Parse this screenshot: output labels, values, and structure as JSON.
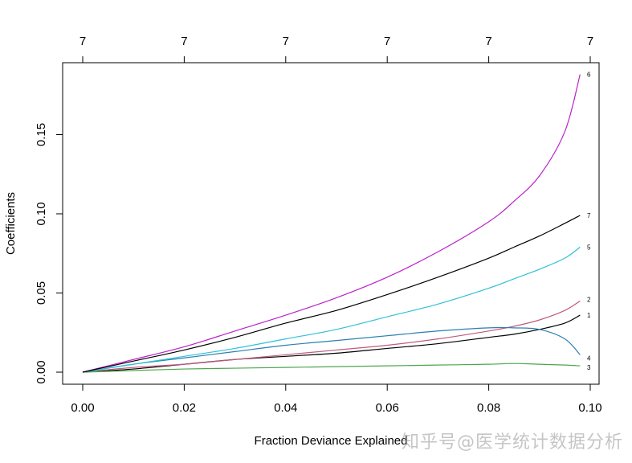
{
  "chart_data": {
    "type": "line",
    "title": "",
    "xlabel": "Fraction Deviance Explained",
    "ylabel": "Coefficients",
    "xlim": [
      -0.004,
      0.102
    ],
    "ylim": [
      -0.008,
      0.195
    ],
    "x_ticks": [
      0.0,
      0.02,
      0.04,
      0.06,
      0.08,
      0.1
    ],
    "x_tick_labels": [
      "0.00",
      "0.02",
      "0.04",
      "0.06",
      "0.08",
      "0.10"
    ],
    "y_ticks": [
      0.0,
      0.05,
      0.1,
      0.15
    ],
    "y_tick_labels": [
      "0.00",
      "0.05",
      "0.10",
      "0.15"
    ],
    "top_axis_ticks": [
      0.0,
      0.02,
      0.04,
      0.06,
      0.08,
      0.1
    ],
    "top_axis_labels": [
      "7",
      "7",
      "7",
      "7",
      "7",
      "7"
    ],
    "grid": false,
    "legend": "none (series labelled at right end of curves)",
    "x": [
      0.0,
      0.01,
      0.02,
      0.03,
      0.04,
      0.05,
      0.06,
      0.07,
      0.08,
      0.085,
      0.09,
      0.095,
      0.098
    ],
    "series": [
      {
        "name": "1",
        "color": "#000000",
        "values": [
          0.0,
          0.002,
          0.005,
          0.008,
          0.01,
          0.012,
          0.015,
          0.018,
          0.022,
          0.024,
          0.027,
          0.031,
          0.036
        ]
      },
      {
        "name": "2",
        "color": "#C05A80",
        "values": [
          0.0,
          0.003,
          0.005,
          0.008,
          0.011,
          0.014,
          0.017,
          0.021,
          0.026,
          0.029,
          0.033,
          0.039,
          0.045
        ]
      },
      {
        "name": "3",
        "color": "#4CA64C",
        "values": [
          0.0,
          0.001,
          0.002,
          0.0025,
          0.003,
          0.0035,
          0.004,
          0.0045,
          0.005,
          0.0055,
          0.005,
          0.0045,
          0.004
        ]
      },
      {
        "name": "4",
        "color": "#2B7FB0",
        "values": [
          0.0,
          0.005,
          0.009,
          0.013,
          0.017,
          0.02,
          0.023,
          0.026,
          0.028,
          0.028,
          0.027,
          0.021,
          0.011
        ]
      },
      {
        "name": "5",
        "color": "#30C0D8",
        "values": [
          0.0,
          0.005,
          0.01,
          0.015,
          0.021,
          0.027,
          0.035,
          0.043,
          0.053,
          0.059,
          0.065,
          0.072,
          0.079
        ]
      },
      {
        "name": "6",
        "color": "#BB22CC",
        "values": [
          0.0,
          0.008,
          0.016,
          0.026,
          0.036,
          0.047,
          0.06,
          0.076,
          0.095,
          0.108,
          0.124,
          0.152,
          0.188
        ]
      },
      {
        "name": "7",
        "color": "#000000",
        "values": [
          0.0,
          0.007,
          0.014,
          0.022,
          0.031,
          0.039,
          0.049,
          0.06,
          0.072,
          0.079,
          0.086,
          0.094,
          0.099
        ]
      }
    ]
  },
  "watermark": "知乎号@医学统计数据分析"
}
